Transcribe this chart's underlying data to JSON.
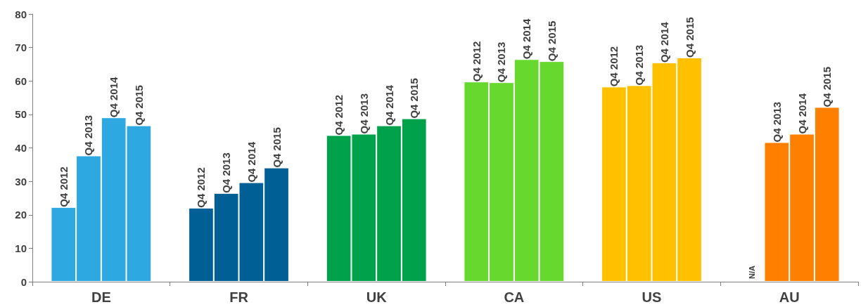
{
  "chart_data": {
    "type": "bar",
    "categories": [
      "DE",
      "FR",
      "UK",
      "CA",
      "US",
      "AU"
    ],
    "series": [
      {
        "name": "Q4 2012",
        "colors": [
          "#2ea8e0",
          "#006095",
          "#00a14b",
          "#66d82e",
          "#ffc000",
          "#ff8000"
        ],
        "values": [
          22.3,
          22.1,
          43.8,
          59.8,
          58.3,
          null
        ]
      },
      {
        "name": "Q4 2013",
        "colors": [
          "#2ea8e0",
          "#006095",
          "#00a14b",
          "#66d82e",
          "#ffc000",
          "#ff8000"
        ],
        "values": [
          37.7,
          26.5,
          44.2,
          59.6,
          58.7,
          41.7
        ]
      },
      {
        "name": "Q4 2014",
        "colors": [
          "#2ea8e0",
          "#006095",
          "#00a14b",
          "#66d82e",
          "#ffc000",
          "#ff8000"
        ],
        "values": [
          49.1,
          29.7,
          46.7,
          66.5,
          65.5,
          44.2
        ]
      },
      {
        "name": "Q4 2015",
        "colors": [
          "#2ea8e0",
          "#006095",
          "#00a14b",
          "#66d82e",
          "#ffc000",
          "#ff8000"
        ],
        "values": [
          46.7,
          34.1,
          48.8,
          65.9,
          67.0,
          52.2
        ]
      }
    ],
    "annotations": [
      "N/A"
    ],
    "ylim": [
      0,
      80
    ],
    "yticks": [
      0,
      10,
      20,
      30,
      40,
      50,
      60,
      70,
      80
    ],
    "grid": false,
    "legend": false
  }
}
